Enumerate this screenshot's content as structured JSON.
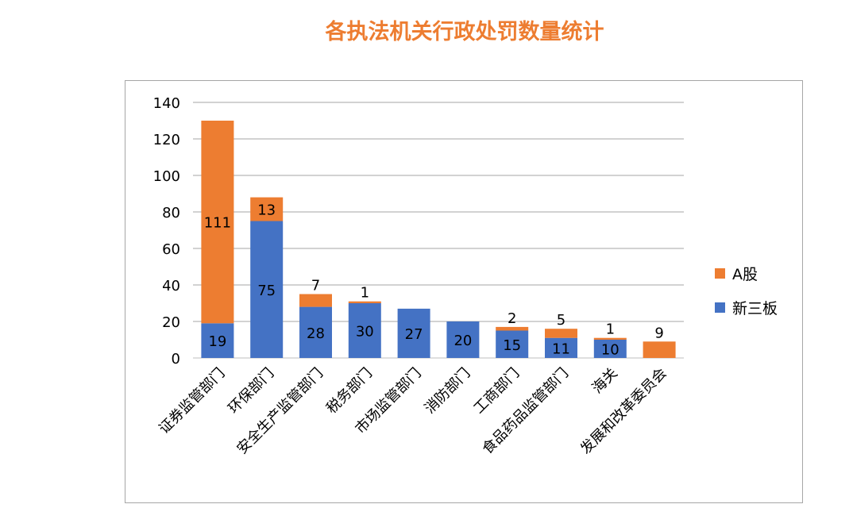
{
  "page": {
    "title": "各执法机关行政处罚数量统计"
  },
  "chart_data": {
    "type": "bar",
    "stacked": true,
    "title": "各执法机关行政处罚数量统计",
    "xlabel": "",
    "ylabel": "",
    "ylim": [
      0,
      140
    ],
    "yticks": [
      0,
      20,
      40,
      60,
      80,
      100,
      120,
      140
    ],
    "grid": true,
    "legend_position": "right",
    "categories": [
      "证券监管部门",
      "环保部门",
      "安全生产监管部门",
      "税务部门",
      "市场监管部门",
      "消防部门",
      "工商部门",
      "食品药品监管部门",
      "海关",
      "发展和改革委员会"
    ],
    "series": [
      {
        "name": "新三板",
        "color": "#4472C4",
        "values": [
          19,
          75,
          28,
          30,
          27,
          20,
          15,
          11,
          10,
          0
        ]
      },
      {
        "name": "A股",
        "color": "#ED7D31",
        "values": [
          111,
          13,
          7,
          1,
          0,
          0,
          2,
          5,
          1,
          9
        ]
      }
    ],
    "data_labels": [
      {
        "series": "新三板",
        "labels": [
          "19",
          "75",
          "28",
          "30",
          "27",
          "20",
          "15",
          "11",
          "10",
          ""
        ]
      },
      {
        "series": "A股",
        "labels": [
          "111",
          "13",
          "7",
          "1",
          "",
          "",
          "2",
          "5",
          "1",
          "9"
        ]
      }
    ],
    "legend": [
      {
        "name": "A股",
        "color": "#ED7D31"
      },
      {
        "name": "新三板",
        "color": "#4472C4"
      }
    ]
  }
}
